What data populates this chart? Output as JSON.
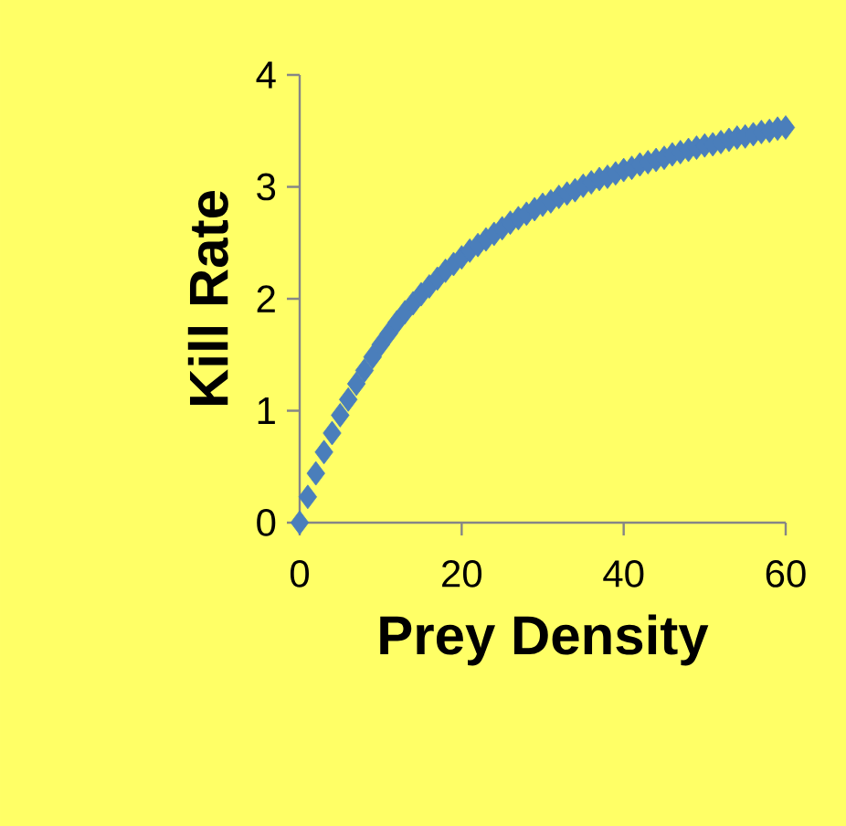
{
  "chart_data": {
    "type": "scatter",
    "xlabel": "Prey Density",
    "ylabel": "Kill Rate",
    "xlim": [
      0,
      60
    ],
    "xticks": [
      0,
      20,
      40,
      60
    ],
    "ylim": [
      0,
      4
    ],
    "yticks": [
      0,
      1,
      2,
      3,
      4
    ],
    "marker": "diamond",
    "series": [
      {
        "color": "#4a7ebb",
        "x": [
          0,
          1,
          2,
          3,
          4,
          5,
          6,
          7,
          8,
          9,
          10,
          11,
          12,
          13,
          14,
          15,
          16,
          17,
          18,
          19,
          20,
          21,
          22,
          23,
          24,
          25,
          26,
          27,
          28,
          29,
          30,
          31,
          32,
          33,
          34,
          35,
          36,
          37,
          38,
          39,
          40,
          41,
          42,
          43,
          44,
          45,
          46,
          47,
          48,
          49,
          50,
          51,
          52,
          53,
          54,
          55,
          56,
          57,
          58,
          59,
          60
        ],
        "values": [
          0,
          0.23,
          0.44,
          0.63,
          0.8,
          0.96,
          1.1,
          1.24,
          1.36,
          1.48,
          1.59,
          1.69,
          1.79,
          1.88,
          1.96,
          2.04,
          2.11,
          2.18,
          2.25,
          2.31,
          2.37,
          2.43,
          2.48,
          2.53,
          2.58,
          2.63,
          2.68,
          2.72,
          2.76,
          2.8,
          2.84,
          2.87,
          2.91,
          2.94,
          2.97,
          3.01,
          3.04,
          3.07,
          3.09,
          3.12,
          3.15,
          3.17,
          3.2,
          3.22,
          3.24,
          3.26,
          3.29,
          3.31,
          3.33,
          3.35,
          3.37,
          3.38,
          3.4,
          3.42,
          3.44,
          3.45,
          3.47,
          3.49,
          3.5,
          3.52,
          3.53
        ]
      }
    ]
  }
}
